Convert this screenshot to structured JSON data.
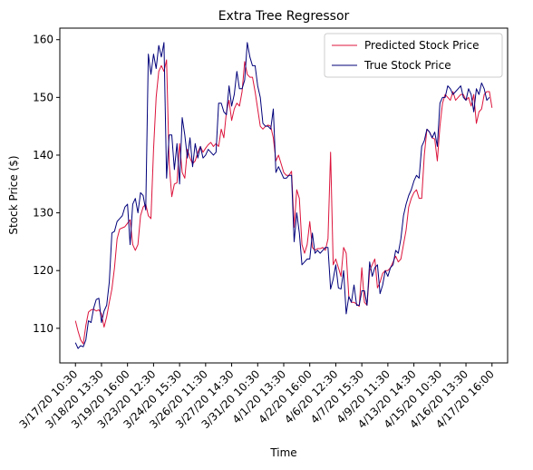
{
  "chart_data": {
    "type": "line",
    "title": "Extra Tree Regressor",
    "xlabel": "Time",
    "ylabel": "Stock Price ($)",
    "ylim": [
      104,
      162
    ],
    "yticks": [
      110,
      120,
      130,
      140,
      150,
      160
    ],
    "xlim": [
      -6,
      166
    ],
    "x_tick_labels": [
      "3/17/20 10:30",
      "3/18/20 13:30",
      "3/19/20 16:00",
      "3/23/20 12:30",
      "3/24/20 15:30",
      "3/26/20 11:30",
      "3/27/20 14:30",
      "3/31/20 10:30",
      "4/1/20 13:30",
      "4/2/20 16:00",
      "4/6/20 12:30",
      "4/7/20 15:30",
      "4/9/20 11:30",
      "4/13/20 14:30",
      "4/15/20 10:30",
      "4/16/20 13:30",
      "4/17/20 16:00"
    ],
    "x_tick_step": 10,
    "grid": false,
    "legend_position": "upper-right",
    "series": [
      {
        "name": "Predicted Stock Price",
        "color": "#dc143c",
        "values": [
          111.3,
          109.5,
          108.0,
          107.3,
          110.5,
          112.8,
          113.2,
          113.3,
          113.0,
          113.2,
          112.5,
          110.2,
          112.0,
          114.5,
          116.8,
          120.5,
          125.5,
          127.2,
          127.4,
          127.6,
          128.2,
          128.8,
          124.5,
          123.5,
          124.5,
          129.5,
          131.0,
          131.5,
          129.5,
          129.0,
          141.0,
          150.0,
          154.5,
          155.5,
          154.5,
          156.5,
          138.5,
          132.8,
          135.0,
          135.2,
          142.0,
          137.0,
          136.0,
          141.0,
          139.5,
          138.5,
          139.0,
          140.5,
          141.5,
          140.5,
          141.2,
          141.8,
          142.2,
          141.5,
          142.0,
          141.5,
          144.5,
          143.0,
          147.5,
          149.5,
          146.0,
          148.0,
          149.0,
          148.5,
          151.0,
          156.2,
          154.0,
          153.5,
          153.5,
          151.0,
          148.0,
          145.0,
          144.5,
          145.0,
          145.2,
          145.0,
          143.0,
          139.0,
          140.0,
          138.5,
          137.0,
          136.5,
          136.5,
          137.2,
          127.5,
          134.0,
          132.5,
          124.5,
          123.0,
          124.5,
          128.5,
          124.0,
          123.5,
          123.8,
          123.8,
          124.0,
          123.5,
          125.5,
          140.5,
          121.0,
          122.0,
          120.5,
          119.0,
          124.0,
          123.0,
          115.5,
          114.5,
          114.5,
          114.2,
          113.8,
          120.5,
          114.5,
          114.0,
          120.0,
          121.0,
          122.0,
          117.0,
          118.0,
          119.5,
          120.0,
          120.0,
          120.5,
          121.5,
          122.5,
          121.5,
          122.0,
          124.5,
          127.0,
          131.0,
          132.5,
          133.5,
          134.0,
          132.5,
          132.5,
          140.0,
          144.5,
          144.0,
          143.0,
          142.8,
          139.0,
          145.0,
          149.0,
          150.5,
          150.0,
          149.5,
          151.0,
          149.5,
          150.0,
          150.5,
          150.5,
          149.5,
          150.0,
          148.5,
          150.5,
          145.5,
          147.5,
          148.0,
          150.5,
          151.0,
          151.0,
          148.2
        ]
      },
      {
        "name": "True Stock Price",
        "color": "#00007a",
        "values": [
          107.5,
          106.5,
          107.0,
          106.8,
          108.0,
          111.3,
          111.0,
          113.5,
          115.0,
          115.2,
          111.0,
          113.0,
          114.0,
          118.0,
          126.5,
          126.8,
          128.5,
          129.0,
          129.5,
          131.0,
          131.5,
          124.5,
          131.5,
          132.5,
          130.0,
          133.5,
          133.0,
          130.5,
          157.5,
          154.0,
          157.5,
          155.0,
          159.0,
          157.0,
          159.5,
          136.0,
          143.5,
          143.5,
          137.5,
          142.0,
          135.0,
          146.5,
          143.5,
          139.5,
          143.0,
          138.0,
          142.0,
          139.5,
          141.5,
          139.5,
          140.0,
          141.0,
          140.5,
          140.0,
          140.5,
          149.0,
          149.0,
          147.5,
          147.0,
          152.0,
          148.5,
          150.5,
          154.5,
          151.5,
          151.5,
          153.0,
          159.5,
          157.0,
          155.5,
          155.5,
          152.0,
          150.0,
          145.5,
          145.0,
          145.0,
          144.5,
          148.0,
          137.0,
          138.0,
          137.0,
          136.0,
          136.0,
          136.5,
          136.5,
          125.0,
          130.0,
          126.5,
          121.0,
          121.5,
          122.0,
          122.0,
          126.5,
          123.0,
          123.5,
          123.0,
          123.5,
          124.0,
          124.0,
          116.8,
          118.5,
          121.0,
          117.0,
          116.8,
          120.0,
          112.5,
          115.5,
          114.5,
          117.5,
          114.0,
          114.0,
          116.5,
          116.5,
          114.0,
          121.5,
          119.0,
          120.5,
          121.0,
          116.0,
          117.5,
          120.0,
          119.0,
          120.5,
          121.0,
          123.5,
          123.0,
          125.5,
          129.5,
          131.5,
          133.0,
          134.0,
          135.5,
          136.5,
          136.0,
          141.5,
          142.5,
          144.5,
          144.0,
          143.0,
          144.0,
          141.5,
          149.0,
          150.0,
          150.0,
          152.0,
          151.5,
          150.5,
          151.0,
          151.5,
          152.0,
          150.0,
          149.5,
          151.5,
          150.5,
          147.5,
          151.5,
          150.5,
          152.5,
          151.5,
          149.5,
          150.0
        ]
      }
    ]
  }
}
